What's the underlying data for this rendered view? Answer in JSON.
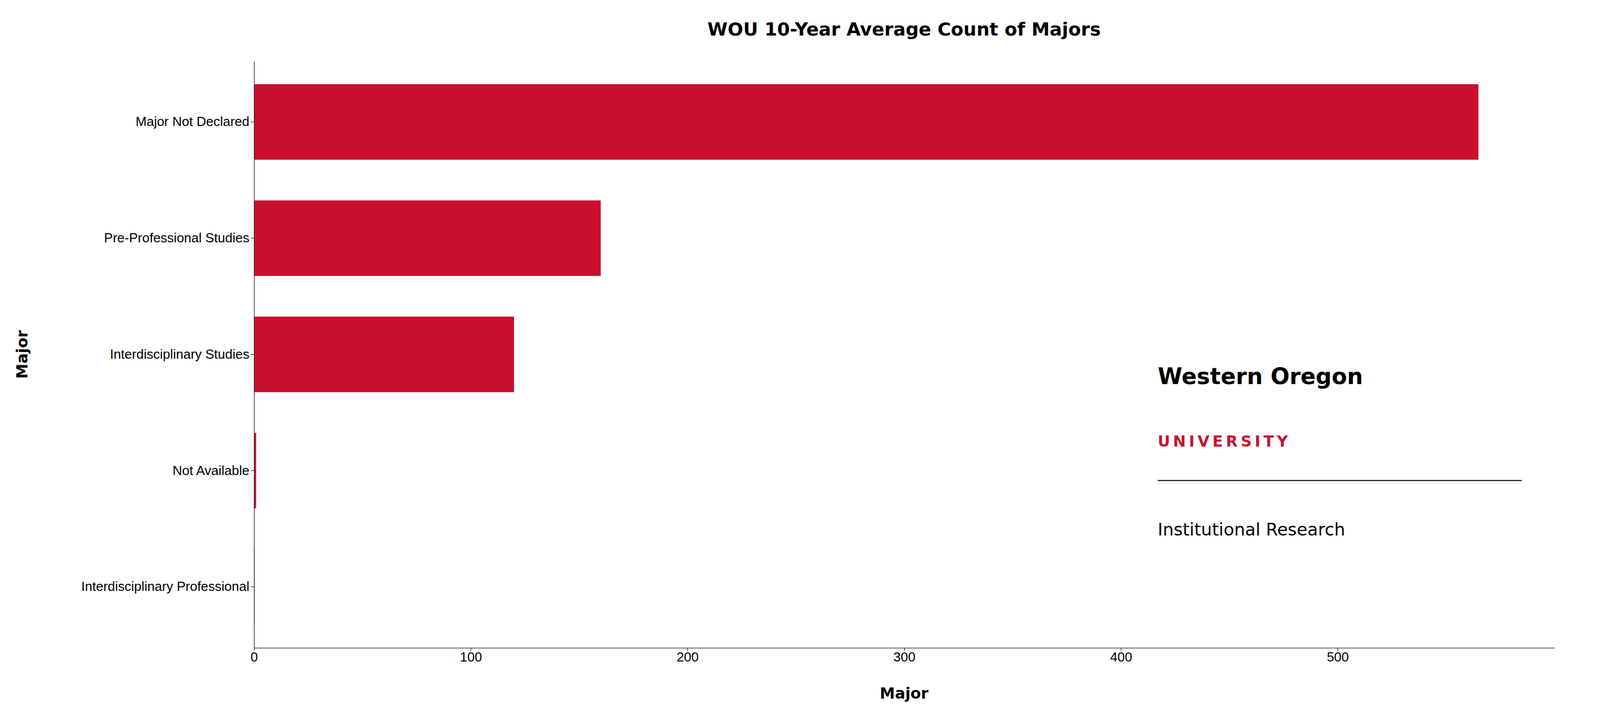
{
  "chart_data": {
    "type": "bar",
    "orientation": "horizontal",
    "title": "WOU 10-Year Average Count of Majors",
    "categories": [
      "Major Not Declared",
      "Pre-Professional Studies",
      "Interdisciplinary Studies",
      "Not Available",
      "Interdisciplinary Professional"
    ],
    "values": [
      565,
      160,
      120,
      1,
      0.3
    ],
    "color": "#C8102E",
    "xlabel": "Major",
    "ylabel": "Major",
    "xlim": [
      0,
      600
    ],
    "xticks": [
      0,
      100,
      200,
      300,
      400,
      500
    ],
    "grid": false,
    "annotations": [
      "Western Oregon",
      "UNIVERSITY",
      "Institutional Research"
    ]
  }
}
